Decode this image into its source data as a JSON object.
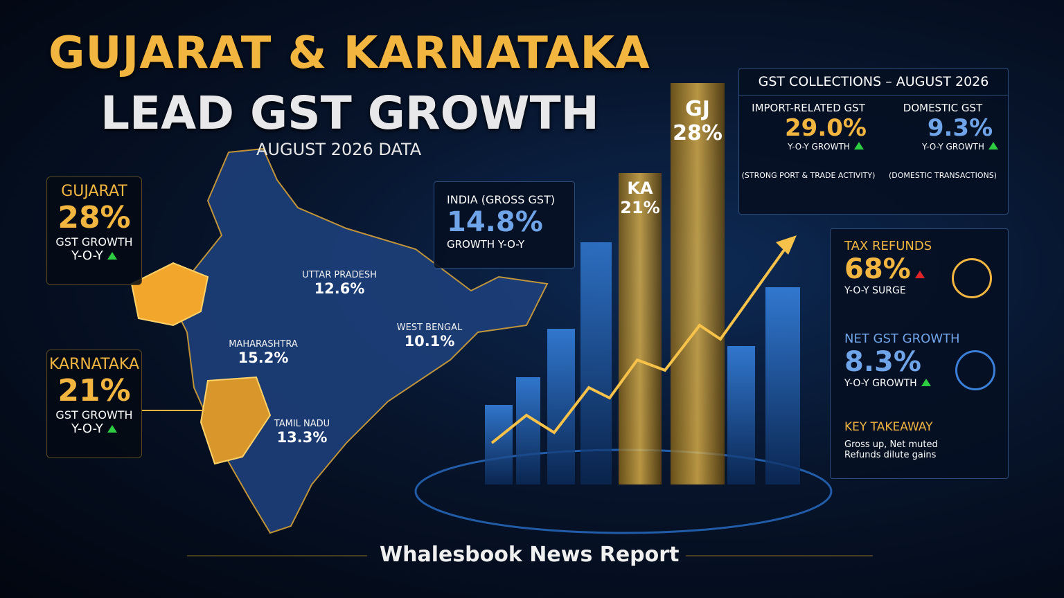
{
  "header": {
    "title_line1": "GUJARAT & KARNATAKA",
    "title_line2": "LEAD GST GROWTH",
    "subtitle": "AUGUST 2026 DATA"
  },
  "state_cards": [
    {
      "name": "GUJARAT",
      "value": "28%",
      "label": "GST GROWTH",
      "period": "Y-O-Y"
    },
    {
      "name": "KARNATAKA",
      "value": "21%",
      "label": "GST GROWTH",
      "period": "Y-O-Y"
    }
  ],
  "map_labels": [
    {
      "name": "UTTAR PRADESH",
      "value": "12.6%"
    },
    {
      "name": "MAHARASHTRA",
      "value": "15.2%"
    },
    {
      "name": "WEST BENGAL",
      "value": "10.1%"
    },
    {
      "name": "TAMIL NADU",
      "value": "13.3%"
    }
  ],
  "india_card": {
    "title": "INDIA (GROSS GST)",
    "value": "14.8%",
    "label": "GROWTH Y-O-Y"
  },
  "bar_labels": [
    {
      "name": "KA",
      "value": "21%"
    },
    {
      "name": "GJ",
      "value": "28%"
    }
  ],
  "collections": {
    "title": "GST COLLECTIONS – AUGUST 2026",
    "items": [
      {
        "name": "IMPORT-RELATED GST",
        "value": "29.0%",
        "label": "Y-O-Y GROWTH",
        "note": "(STRONG PORT & TRADE ACTIVITY)"
      },
      {
        "name": "DOMESTIC GST",
        "value": "9.3%",
        "label": "Y-O-Y GROWTH",
        "note": "(DOMESTIC TRANSACTIONS)"
      }
    ]
  },
  "side_cards": [
    {
      "title": "TAX REFUNDS",
      "value": "68%",
      "label": "Y-O-Y SURGE"
    },
    {
      "title": "NET GST GROWTH",
      "value": "8.3%",
      "label": "Y-O-Y GROWTH"
    }
  ],
  "takeaway": {
    "title": "KEY TAKEAWAY",
    "lines": [
      "Gross up, Net muted",
      "Refunds dilute gains"
    ]
  },
  "footer": "Whalesbook News Report"
}
